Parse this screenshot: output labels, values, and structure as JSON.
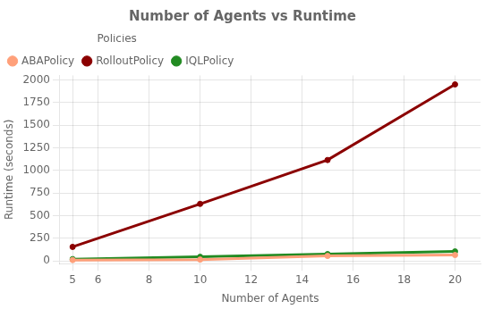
{
  "chart_data": {
    "type": "line",
    "title": "Number of Agents vs Runtime",
    "xlabel": "Number of Agents",
    "ylabel": "Runtime (seconds)",
    "x": [
      5,
      10,
      15,
      20
    ],
    "series": [
      {
        "name": "ABAPolicy",
        "color": "#FFA07A",
        "marker": "circle",
        "values": [
          10,
          15,
          55,
          65
        ]
      },
      {
        "name": "RolloutPolicy",
        "color": "#8B0000",
        "marker": "circle",
        "values": [
          155,
          630,
          1115,
          1950
        ]
      },
      {
        "name": "IQLPolicy",
        "color": "#228B22",
        "marker": "circle",
        "values": [
          20,
          45,
          75,
          105
        ]
      }
    ],
    "xlim": [
      4.5,
      21
    ],
    "ylim": [
      -30,
      2050
    ],
    "xticks": [
      5,
      6,
      8,
      10,
      12,
      14,
      16,
      18,
      20
    ],
    "yticks": [
      0,
      250,
      500,
      750,
      1000,
      1250,
      1500,
      1750,
      2000
    ],
    "grid": true,
    "legend": "upper left",
    "legend_title": "Policies"
  }
}
